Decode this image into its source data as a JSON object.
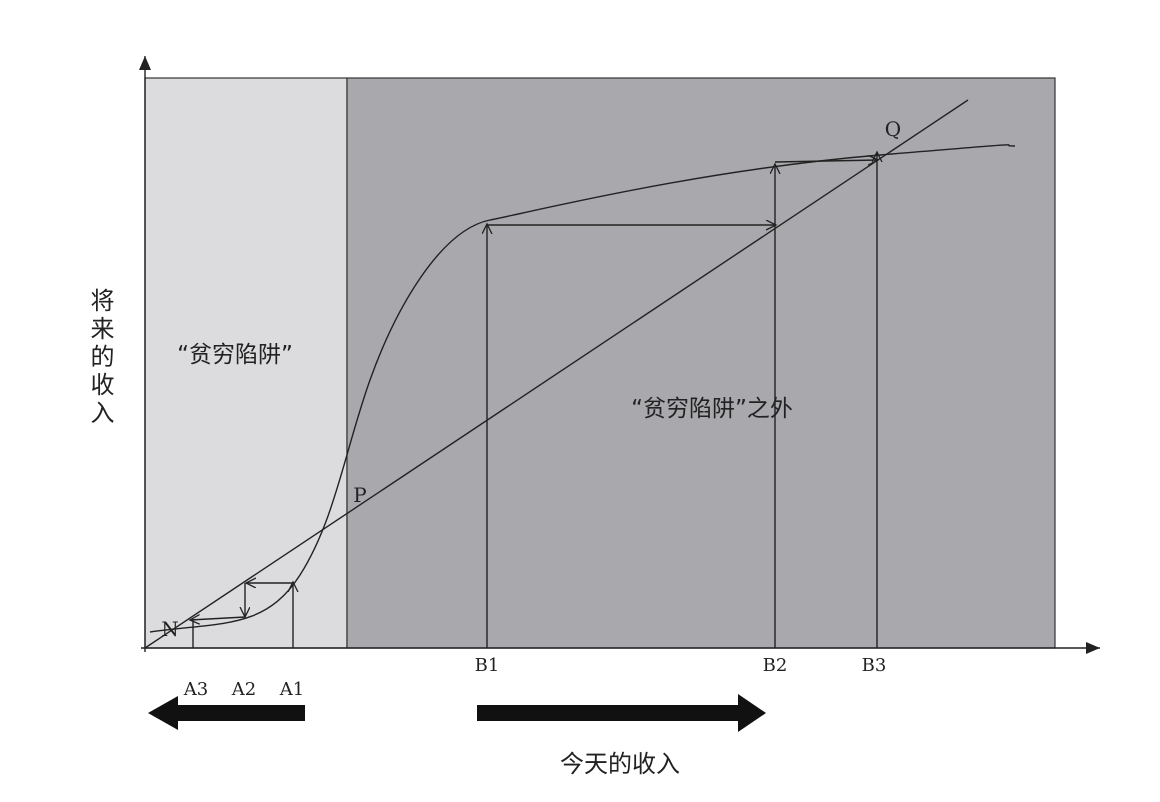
{
  "axes": {
    "y_label": "将来的收入",
    "x_label": "今天的收入"
  },
  "regions": [
    {
      "label": "“贫穷陷阱”"
    },
    {
      "label": "“贫穷陷阱”之外"
    }
  ],
  "points": [
    {
      "label": "N"
    },
    {
      "label": "P"
    },
    {
      "label": "Q"
    }
  ],
  "x_markers": [
    "A3",
    "A2",
    "A1",
    "B1",
    "B2",
    "B3"
  ]
}
